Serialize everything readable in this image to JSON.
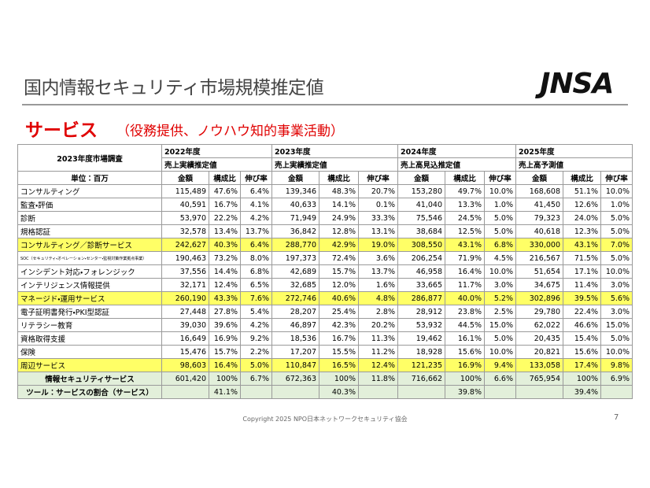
{
  "header": {
    "title": "国内情報セキュリティ市場規模推定値",
    "logo": "JNSA",
    "section": "サービス",
    "section_note": "（役務提供、ノウハウ知的事業活動）"
  },
  "table": {
    "corner_title": "2023年度市場調査",
    "unit": "単位：百万",
    "years": [
      {
        "year": "2022年度",
        "basis": "売上実績推定値"
      },
      {
        "year": "2023年度",
        "basis": "売上実績推定値"
      },
      {
        "year": "2024年度",
        "basis": "売上高見込推定値"
      },
      {
        "year": "2025年度",
        "basis": "売上高予測値"
      }
    ],
    "column_headers": [
      "金額",
      "構成比",
      "伸び率"
    ],
    "rows": [
      {
        "label": "コンサルティング",
        "cells": [
          "115,489",
          "47.6%",
          "6.4%",
          "139,346",
          "48.3%",
          "20.7%",
          "153,280",
          "49.7%",
          "10.0%",
          "168,608",
          "51.1%",
          "10.0%"
        ]
      },
      {
        "label": "監査・評価",
        "cells": [
          "40,591",
          "16.7%",
          "4.1%",
          "40,633",
          "14.1%",
          "0.1%",
          "41,040",
          "13.3%",
          "1.0%",
          "41,450",
          "12.6%",
          "1.0%"
        ]
      },
      {
        "label": "診断",
        "cells": [
          "53,970",
          "22.2%",
          "4.2%",
          "71,949",
          "24.9%",
          "33.3%",
          "75,546",
          "24.5%",
          "5.0%",
          "79,323",
          "24.0%",
          "5.0%"
        ]
      },
      {
        "label": "規格認証",
        "cells": [
          "32,578",
          "13.4%",
          "13.7%",
          "36,842",
          "12.8%",
          "13.1%",
          "38,684",
          "12.5%",
          "5.0%",
          "40,618",
          "12.3%",
          "5.0%"
        ]
      },
      {
        "label": "コンサルティング／診断サービス",
        "fill": "#ffff66",
        "cells": [
          "242,627",
          "40.3%",
          "6.4%",
          "288,770",
          "42.9%",
          "19.0%",
          "308,550",
          "43.1%",
          "6.8%",
          "330,000",
          "43.1%",
          "7.0%"
        ]
      },
      {
        "label": "SOC（セキュリティ・オペレーション・センター・監視対策作業拠点事業）",
        "cells": [
          "190,463",
          "73.2%",
          "8.0%",
          "197,373",
          "72.4%",
          "3.6%",
          "206,254",
          "71.9%",
          "4.5%",
          "216,567",
          "71.5%",
          "5.0%"
        ]
      },
      {
        "label": "インシデント対応・フォレンジック",
        "cells": [
          "37,556",
          "14.4%",
          "6.8%",
          "42,689",
          "15.7%",
          "13.7%",
          "46,958",
          "16.4%",
          "10.0%",
          "51,654",
          "17.1%",
          "10.0%"
        ]
      },
      {
        "label": "インテリジェンス情報提供",
        "cells": [
          "32,171",
          "12.4%",
          "6.5%",
          "32,685",
          "12.0%",
          "1.6%",
          "33,665",
          "11.7%",
          "3.0%",
          "34,675",
          "11.4%",
          "3.0%"
        ]
      },
      {
        "label": "マネージド・運用サービス",
        "fill": "#ffff66",
        "cells": [
          "260,190",
          "43.3%",
          "7.6%",
          "272,746",
          "40.6%",
          "4.8%",
          "286,877",
          "40.0%",
          "5.2%",
          "302,896",
          "39.5%",
          "5.6%"
        ]
      },
      {
        "label": "電子証明書発行・PKI型認証",
        "cells": [
          "27,448",
          "27.8%",
          "5.4%",
          "28,207",
          "25.4%",
          "2.8%",
          "28,912",
          "23.8%",
          "2.5%",
          "29,780",
          "22.4%",
          "3.0%"
        ]
      },
      {
        "label": "リテラシー教育",
        "cells": [
          "39,030",
          "39.6%",
          "4.2%",
          "46,897",
          "42.3%",
          "20.2%",
          "53,932",
          "44.5%",
          "15.0%",
          "62,022",
          "46.6%",
          "15.0%"
        ]
      },
      {
        "label": "資格取得支援",
        "cells": [
          "16,649",
          "16.9%",
          "9.2%",
          "18,536",
          "16.7%",
          "11.3%",
          "19,462",
          "16.1%",
          "5.0%",
          "20,435",
          "15.4%",
          "5.0%"
        ]
      },
      {
        "label": "保険",
        "cells": [
          "15,476",
          "15.7%",
          "2.2%",
          "17,207",
          "15.5%",
          "11.2%",
          "18,928",
          "15.6%",
          "10.0%",
          "20,821",
          "15.6%",
          "10.0%"
        ]
      },
      {
        "label": "周辺サービス",
        "fill": "#ffff66",
        "cells": [
          "98,603",
          "16.4%",
          "5.0%",
          "110,847",
          "16.5%",
          "12.4%",
          "121,235",
          "16.9%",
          "9.4%",
          "133,058",
          "17.4%",
          "9.8%"
        ]
      },
      {
        "label": "情報セキュリティサービス",
        "fill": "#e2efda",
        "cells": [
          "601,420",
          "100%",
          "6.7%",
          "672,363",
          "100%",
          "11.8%",
          "716,662",
          "100%",
          "6.6%",
          "765,954",
          "100%",
          "6.9%"
        ]
      },
      {
        "label": "ツール：サービスの割合（サービス）",
        "fill": "#e2efda",
        "cells": [
          null,
          "41.1%",
          null,
          null,
          "40.3%",
          null,
          null,
          "39.8%",
          null,
          null,
          "39.4%",
          null
        ]
      }
    ]
  },
  "footer": {
    "copyright": "Copyright 2025 NPO日本ネットワークセキュリティ協会",
    "page": "7"
  }
}
